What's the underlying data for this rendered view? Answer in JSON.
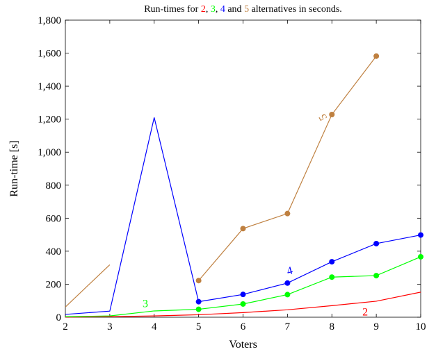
{
  "chart_data": {
    "type": "line",
    "title_parts": [
      {
        "text": "Run-times for ",
        "color": "#000000"
      },
      {
        "text": "2",
        "color": "#ff0000"
      },
      {
        "text": ", ",
        "color": "#000000"
      },
      {
        "text": "3",
        "color": "#00ff00"
      },
      {
        "text": ", ",
        "color": "#000000"
      },
      {
        "text": "4",
        "color": "#0000ff"
      },
      {
        "text": " and ",
        "color": "#000000"
      },
      {
        "text": "5",
        "color": "#bf8040"
      },
      {
        "text": " alternatives in seconds.",
        "color": "#000000"
      }
    ],
    "xlabel": "Voters",
    "ylabel": "Run-time [s]",
    "xlim": [
      2,
      10
    ],
    "ylim": [
      0,
      1800
    ],
    "x_ticks": [
      2,
      3,
      4,
      5,
      6,
      7,
      8,
      9,
      10
    ],
    "y_ticks": [
      {
        "value": 0,
        "label": "0"
      },
      {
        "value": 200,
        "label": "200"
      },
      {
        "value": 400,
        "label": "400"
      },
      {
        "value": 600,
        "label": "600"
      },
      {
        "value": 800,
        "label": "800"
      },
      {
        "value": 1000,
        "label": "1,000"
      },
      {
        "value": 1200,
        "label": "1,200"
      },
      {
        "value": 1400,
        "label": "1,400"
      },
      {
        "value": 1600,
        "label": "1,600"
      },
      {
        "value": 1800,
        "label": "1,800"
      }
    ],
    "grid": false,
    "legend": "none",
    "series": [
      {
        "name": "2",
        "color": "#ff0000",
        "markers": false,
        "x": [
          2,
          3,
          4,
          5,
          6,
          7,
          8,
          9,
          10
        ],
        "values": [
          1,
          3,
          8,
          15,
          28,
          45,
          70,
          97,
          152
        ],
        "label_at": [
          8.75,
          10
        ],
        "label_rotate": 0
      },
      {
        "name": "3",
        "color": "#00ff00",
        "markers_from_x": 5,
        "x": [
          2,
          3,
          4,
          5,
          6,
          7,
          8,
          9,
          10
        ],
        "values": [
          3,
          8,
          38,
          48,
          80,
          137,
          243,
          252,
          366
        ],
        "label_at": [
          3.8,
          60
        ],
        "label_rotate": 0
      },
      {
        "name": "4",
        "color": "#0000ff",
        "markers_from_x": 5,
        "x": [
          2,
          3,
          4,
          5,
          6,
          7,
          8,
          9,
          10
        ],
        "values": [
          17,
          37,
          1210,
          94,
          138,
          207,
          336,
          446,
          498
        ],
        "label_at": [
          7.05,
          260
        ],
        "label_rotate": -15
      },
      {
        "name": "5",
        "color": "#bf8040",
        "markers_from_x": 5,
        "segments": [
          {
            "x": [
              2,
              3
            ],
            "values": [
              62,
              318
            ]
          },
          {
            "x": [
              5,
              6,
              7,
              8,
              9
            ],
            "values": [
              222,
              537,
              628,
              1228,
              1582
            ]
          }
        ],
        "label_at": [
          7.8,
          1190
        ],
        "label_rotate": -120
      }
    ]
  }
}
